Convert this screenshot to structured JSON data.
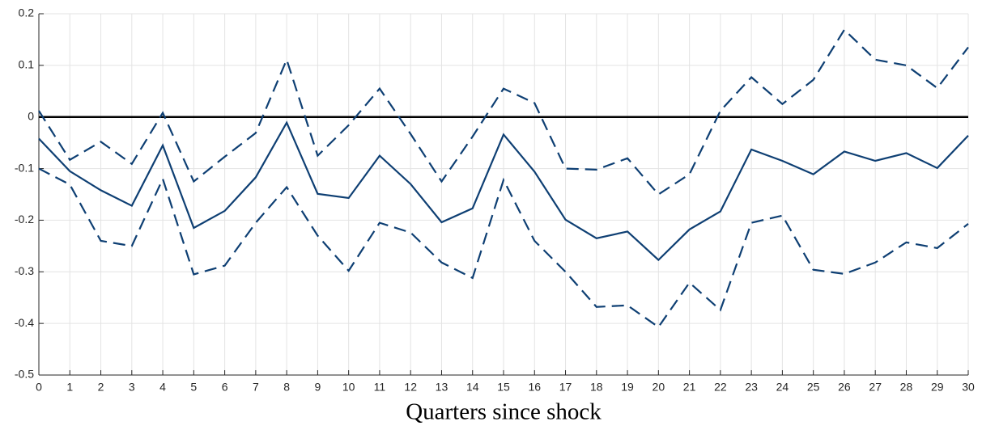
{
  "chart_data": {
    "type": "line",
    "x_label": "Quarters since shock",
    "x": [
      0,
      1,
      2,
      3,
      4,
      5,
      6,
      7,
      8,
      9,
      10,
      11,
      12,
      13,
      14,
      15,
      16,
      17,
      18,
      19,
      20,
      21,
      22,
      23,
      24,
      25,
      26,
      27,
      28,
      29,
      30
    ],
    "xlim": [
      0,
      30
    ],
    "xticks": [
      0,
      1,
      2,
      3,
      4,
      5,
      6,
      7,
      8,
      9,
      10,
      11,
      12,
      13,
      14,
      15,
      16,
      17,
      18,
      19,
      20,
      21,
      22,
      23,
      24,
      25,
      26,
      27,
      28,
      29,
      30
    ],
    "ylim": [
      -0.5,
      0.2
    ],
    "yticks": [
      -0.5,
      -0.4,
      -0.3,
      -0.2,
      -0.1,
      0,
      0.1,
      0.2
    ],
    "grid": true,
    "reference_line": 0,
    "reference_color": "#000000",
    "series": [
      {
        "color": "#0e3f73",
        "line_style": "solid",
        "values": [
          -0.042,
          -0.105,
          -0.142,
          -0.172,
          -0.055,
          -0.215,
          -0.182,
          -0.117,
          -0.011,
          -0.149,
          -0.157,
          -0.075,
          -0.13,
          -0.204,
          -0.177,
          -0.034,
          -0.106,
          -0.199,
          -0.235,
          -0.222,
          -0.277,
          -0.218,
          -0.183,
          -0.063,
          -0.085,
          -0.111,
          -0.067,
          -0.085,
          -0.07,
          -0.099,
          -0.036
        ]
      },
      {
        "color": "#0e3f73",
        "line_style": "dashed",
        "values": [
          0.012,
          -0.083,
          -0.048,
          -0.091,
          0.008,
          -0.125,
          -0.077,
          -0.031,
          0.111,
          -0.075,
          -0.016,
          0.055,
          -0.033,
          -0.125,
          -0.038,
          0.055,
          0.027,
          -0.1,
          -0.102,
          -0.08,
          -0.15,
          -0.111,
          0.012,
          0.077,
          0.025,
          0.072,
          0.169,
          0.111,
          0.1,
          0.056,
          0.135
        ]
      },
      {
        "color": "#0e3f73",
        "line_style": "dashed",
        "values": [
          -0.1,
          -0.131,
          -0.24,
          -0.25,
          -0.12,
          -0.305,
          -0.288,
          -0.205,
          -0.136,
          -0.23,
          -0.298,
          -0.205,
          -0.224,
          -0.282,
          -0.312,
          -0.122,
          -0.24,
          -0.3,
          -0.368,
          -0.365,
          -0.407,
          -0.321,
          -0.374,
          -0.205,
          -0.191,
          -0.296,
          -0.304,
          -0.282,
          -0.243,
          -0.254,
          -0.207
        ]
      }
    ]
  }
}
